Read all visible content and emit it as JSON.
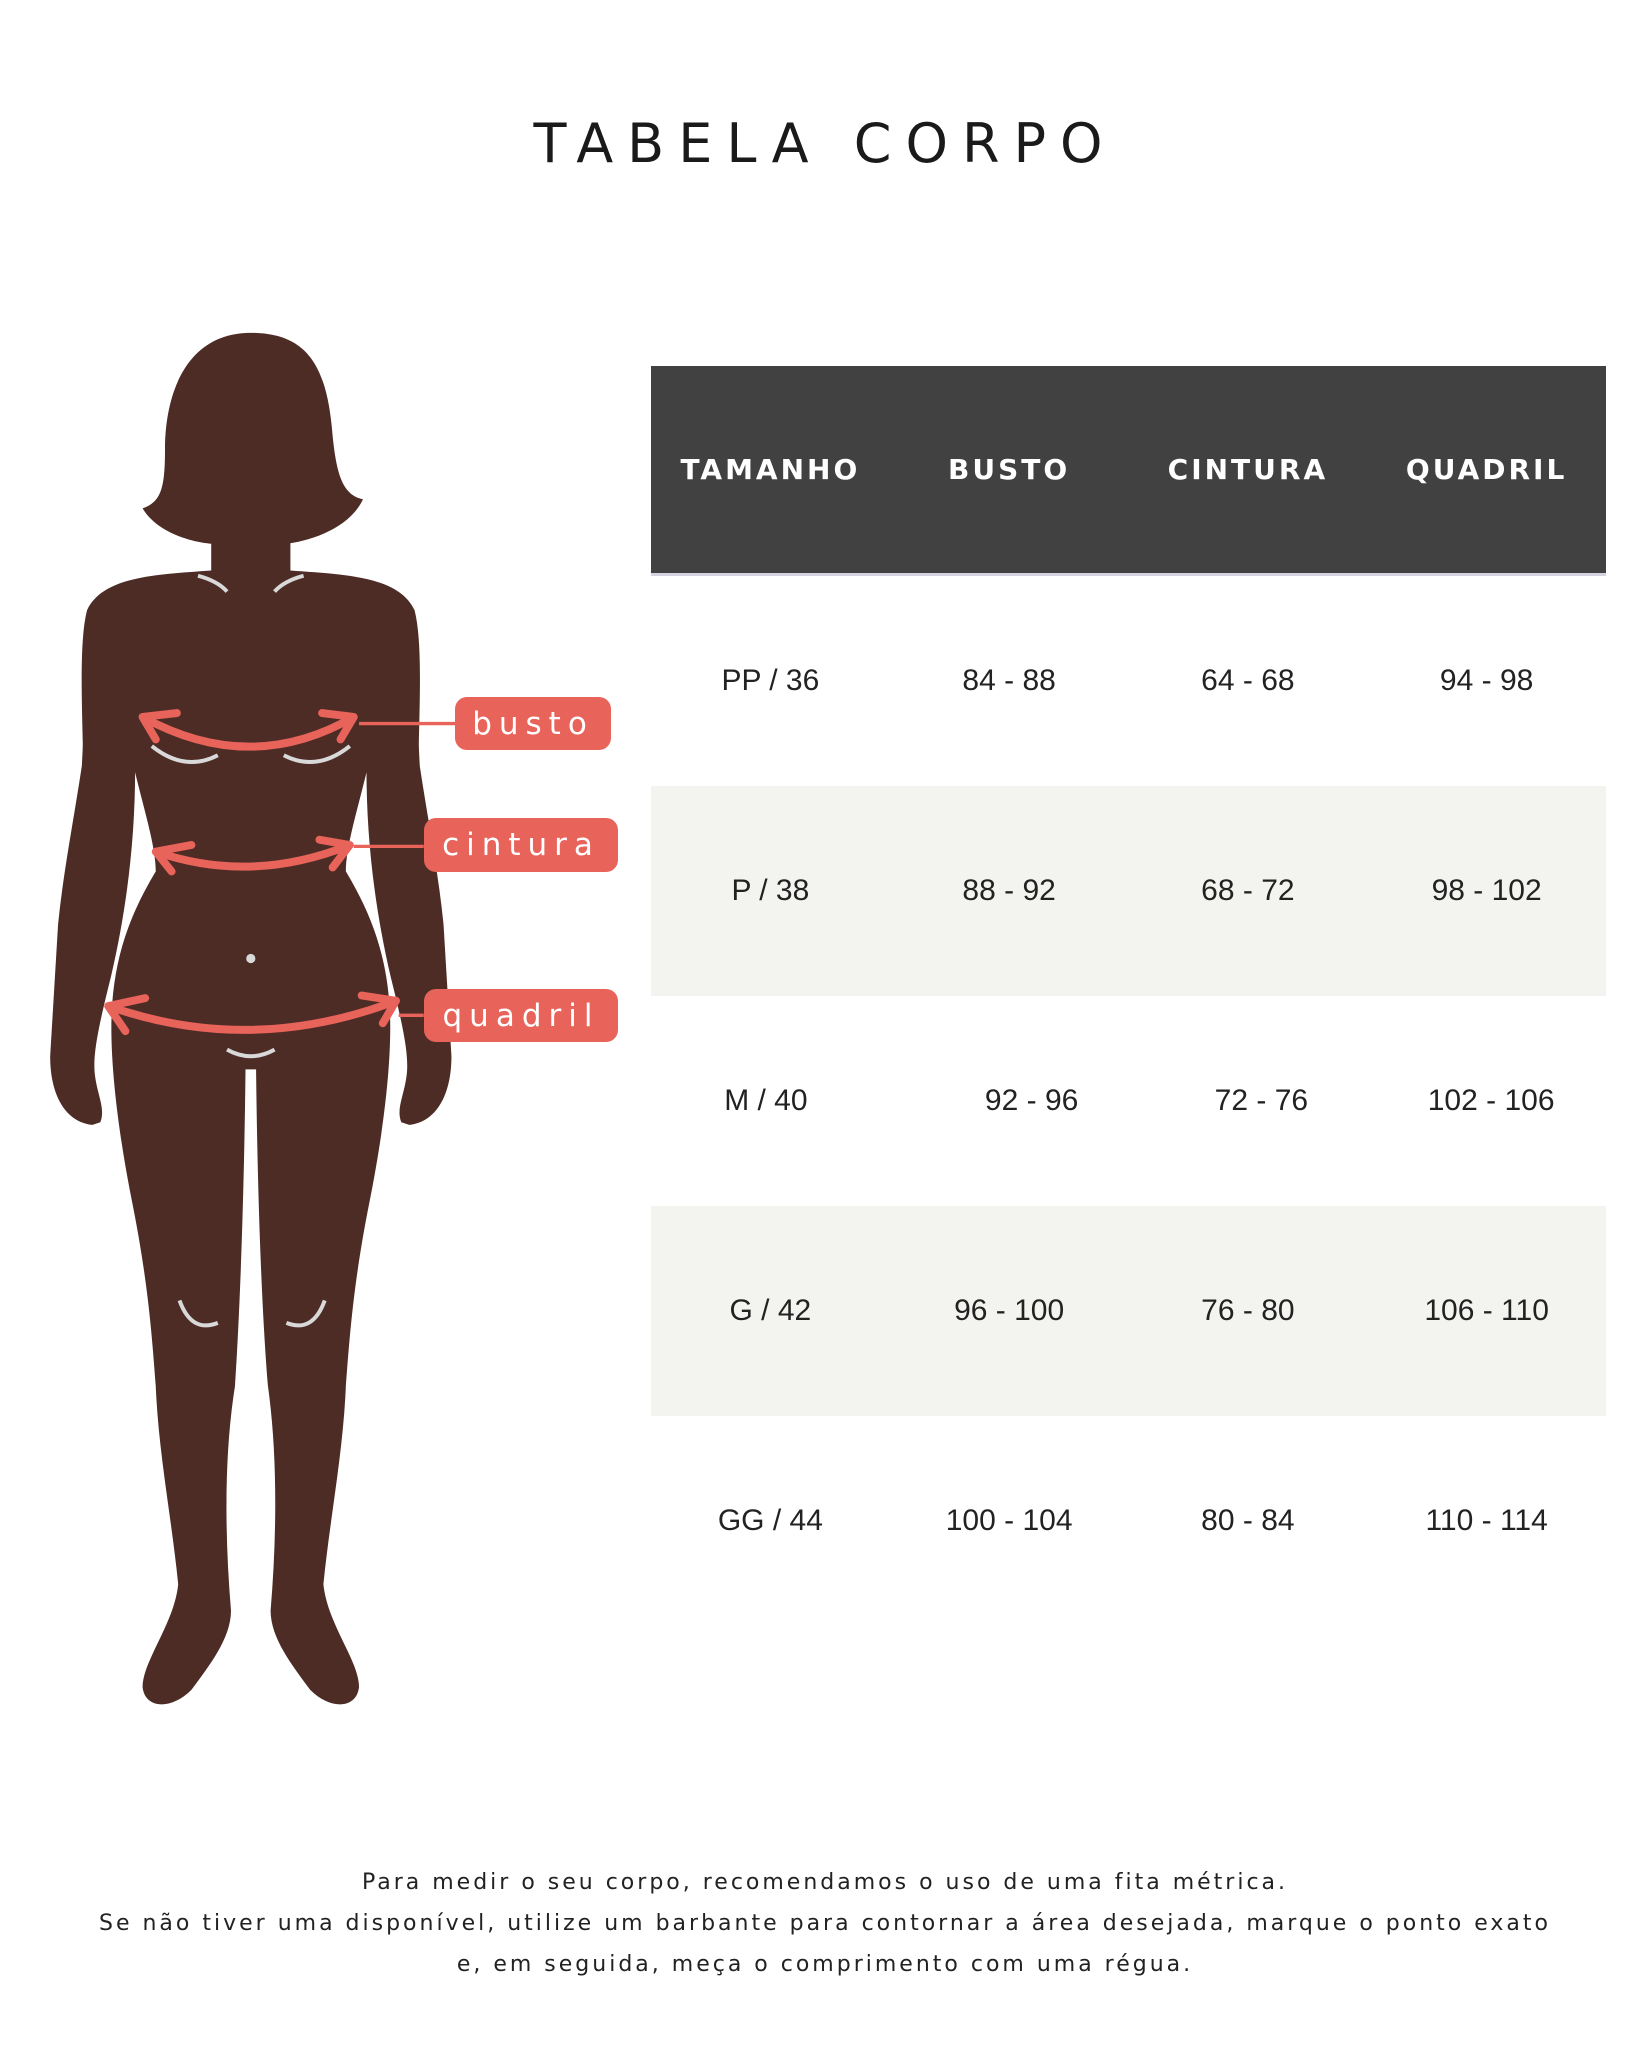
{
  "title": "TABELA CORPO",
  "figure": {
    "labels": {
      "busto": "busto",
      "cintura": "cintura",
      "quadril": "quadril"
    },
    "colors": {
      "body": "#4e2c26",
      "accent": "#e8635a",
      "marks": "#d9d9d9"
    }
  },
  "table": {
    "headers": [
      "TAMANHO",
      "BUSTO",
      "CINTURA",
      "QUADRIL"
    ],
    "rows": [
      [
        "PP / 36",
        "84 - 88",
        "64 - 68",
        "94 - 98"
      ],
      [
        "P / 38",
        "88 - 92",
        "68 - 72",
        "98 - 102"
      ],
      [
        "M / 40",
        "92 - 96",
        "72 - 76",
        "102 - 106"
      ],
      [
        "G / 42",
        "96 - 100",
        "76 - 80",
        "106 - 110"
      ],
      [
        "GG / 44",
        "100 - 104",
        "80 - 84",
        "110 - 114"
      ]
    ],
    "colors": {
      "header_bg": "#414141",
      "alt_row_bg": "#f3f3ef"
    }
  },
  "footer": {
    "lines": [
      "Para medir o seu corpo, recomendamos o uso de uma fita métrica.",
      "Se não tiver uma disponível, utilize um barbante para contornar a área desejada, marque o ponto exato",
      "e, em seguida, meça o comprimento com uma régua."
    ]
  }
}
